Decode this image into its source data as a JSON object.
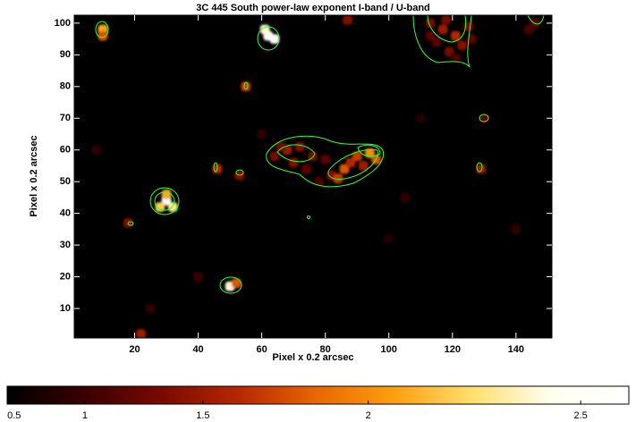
{
  "chart_data": {
    "type": "heatmap",
    "title": "3C 445 South power-law exponent I-band  / U-band",
    "x_label": "Pixel x 0.2 arcsec",
    "y_label": "Pixel  x 0.2 arcsec",
    "xlim": [
      1,
      151.3
    ],
    "ylim": [
      0.7,
      102.5
    ],
    "xticks": [
      20,
      40,
      60,
      80,
      100,
      120,
      140
    ],
    "yticks": [
      10,
      20,
      30,
      40,
      50,
      60,
      70,
      80,
      90,
      100
    ],
    "x": [
      64,
      68,
      72,
      70,
      76,
      80,
      74,
      82,
      86,
      84,
      88,
      90,
      94,
      96,
      92,
      78,
      66,
      113,
      117,
      121,
      125,
      115,
      119,
      123,
      113,
      118,
      126,
      121,
      146,
      144,
      62,
      61,
      64,
      30,
      28,
      32,
      30,
      50,
      52,
      10,
      10,
      55,
      46,
      53,
      129,
      130,
      18,
      22,
      87,
      105,
      40,
      25,
      140,
      100,
      8,
      60,
      110
    ],
    "y": [
      58,
      60,
      61,
      56,
      58,
      57,
      54,
      52,
      54,
      51,
      56,
      58,
      59,
      57,
      55,
      50,
      61,
      100,
      98,
      96,
      99,
      94,
      91,
      93,
      96,
      101,
      95,
      89,
      100,
      98,
      96,
      98,
      95,
      44,
      42,
      42,
      46,
      17,
      18,
      98,
      96,
      80,
      54,
      52,
      54,
      70,
      37,
      2,
      101,
      45,
      20,
      10,
      35,
      32,
      60,
      65,
      70
    ],
    "values": [
      1.3,
      1.5,
      1.4,
      1.4,
      1.3,
      1.2,
      1.2,
      1.4,
      1.8,
      1.7,
      1.6,
      1.7,
      2.0,
      1.8,
      1.5,
      1.1,
      1.3,
      1.3,
      1.5,
      1.6,
      1.3,
      1.2,
      1.3,
      1.4,
      1.2,
      1.3,
      1.2,
      1.1,
      1.2,
      1.1,
      2.6,
      2.4,
      2.5,
      2.6,
      2.2,
      2.3,
      2.1,
      2.4,
      1.8,
      2.1,
      1.8,
      1.7,
      1.6,
      1.4,
      1.5,
      1.2,
      1.4,
      1.5,
      1.4,
      0.9,
      1.0,
      0.9,
      0.9,
      0.8,
      0.9,
      0.9,
      0.8
    ],
    "colormap": [
      "#000000",
      "#3a0000",
      "#7a0a00",
      "#b82800",
      "#e86800",
      "#ffa010",
      "#ffe070",
      "#fffff0",
      "#ffffff"
    ],
    "contour_color": "#33ff33",
    "colorbar_scale": "square",
    "clim": [
      0.42,
      2.6
    ],
    "colorbar_ticks": [
      0.5,
      1,
      1.5,
      2,
      2.5
    ]
  }
}
